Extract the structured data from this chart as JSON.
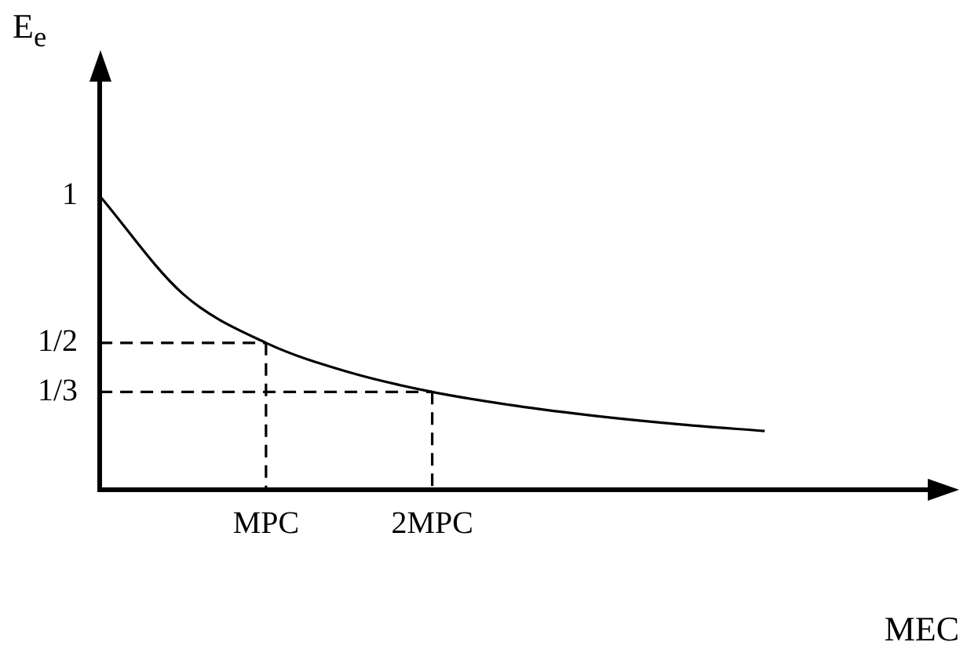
{
  "chart_data": {
    "type": "line",
    "xlabel": "MEC",
    "ylabel": "E$_{e}$",
    "categories": [
      null,
      null,
      "MPC",
      null,
      "2MPC",
      null,
      null,
      null,
      null,
      null,
      null
    ],
    "ylim": [
      0,
      1.4
    ],
    "yticks": [
      {
        "value": 1,
        "label": "1"
      },
      {
        "value": 0.5,
        "label": "1/2"
      },
      {
        "value": 0.333,
        "label": "1/3"
      }
    ],
    "grid": false,
    "legend": false,
    "marker": "none",
    "series": [
      {
        "color": "#000000",
        "line_style": "solid",
        "values": [
          1,
          0.667,
          0.5,
          0.4,
          0.333,
          0.286,
          0.25,
          0.222,
          0.2,
          null,
          null
        ]
      },
      {
        "color": "#000000",
        "line_style": "dashed",
        "values": [
          0.5,
          0.5,
          0.5,
          null,
          null,
          null,
          null,
          null,
          null,
          null,
          null
        ]
      },
      {
        "color": "#000000",
        "line_style": "dashed",
        "values": [
          0.333,
          0.333,
          0.333,
          0.333,
          0.333,
          null,
          null,
          null,
          null,
          null,
          null
        ]
      },
      {
        "color": "#000000",
        "line_style": "dashed",
        "x": [
          "MPC",
          "MPC"
        ],
        "values": [
          0.5,
          0
        ]
      },
      {
        "color": "#000000",
        "line_style": "dashed",
        "x": [
          "2MPC",
          "2MPC"
        ],
        "values": [
          0.333,
          0
        ]
      }
    ]
  }
}
